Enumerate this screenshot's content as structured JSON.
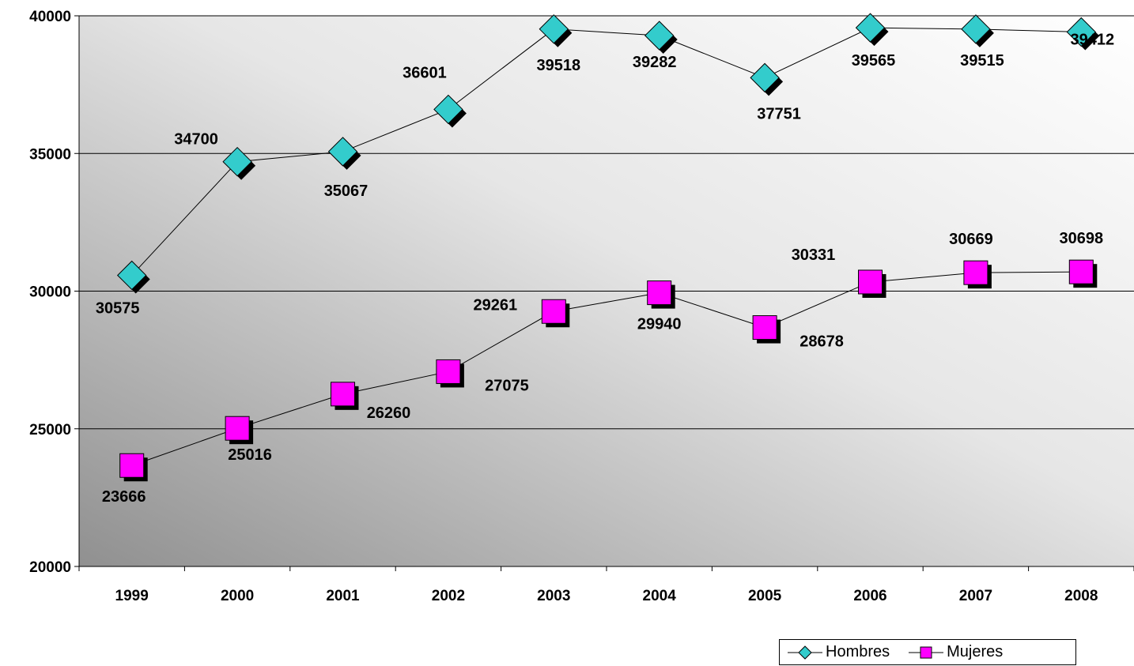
{
  "chart_data": {
    "type": "line",
    "categories": [
      "1999",
      "2000",
      "2001",
      "2002",
      "2003",
      "2004",
      "2005",
      "2006",
      "2007",
      "2008"
    ],
    "series": [
      {
        "name": "Hombres",
        "values": [
          30575,
          34700,
          35067,
          36601,
          39518,
          39282,
          37751,
          39565,
          39515,
          39412
        ],
        "labels": [
          "30575",
          "34700",
          "35067",
          "36601",
          "39518",
          "39282",
          "37751",
          "39565",
          "39515",
          "39412"
        ],
        "marker": "diamond",
        "color": "#33CCCC"
      },
      {
        "name": "Mujeres",
        "values": [
          23666,
          25016,
          26260,
          27075,
          29261,
          29940,
          28678,
          30331,
          30669,
          30698
        ],
        "labels": [
          "23666",
          "25016",
          "26260",
          "27075",
          "29261",
          "29940",
          "28678",
          "30331",
          "30669",
          "30698"
        ],
        "marker": "square",
        "color": "#FF00FF"
      }
    ],
    "y_ticks": [
      "20000",
      "25000",
      "30000",
      "35000",
      "40000"
    ],
    "ylim": [
      20000,
      40000
    ],
    "grid": true,
    "legend_position": "bottom-right",
    "background": "gradient gray"
  }
}
